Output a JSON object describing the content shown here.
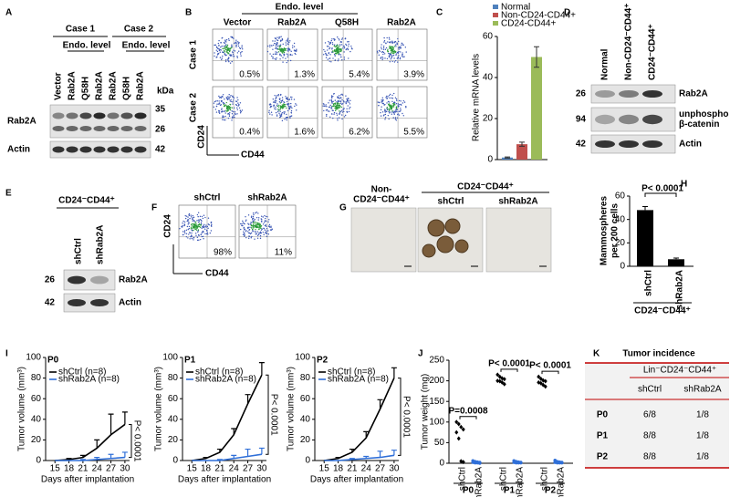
{
  "panel_letters": [
    "A",
    "B",
    "C",
    "D",
    "E",
    "F",
    "G",
    "H",
    "I",
    "J",
    "K"
  ],
  "panel_A": {
    "groups": [
      "Case 1",
      "Case 2"
    ],
    "subheaders": [
      "Endo. level",
      "Endo. level"
    ],
    "lanes": [
      "Vector",
      "Rab2A",
      "Q58H",
      "Rab2A",
      "Rab2A",
      "Q58H",
      "Rab2A"
    ],
    "kda": "kDa",
    "rows": [
      "Rab2A",
      "Actin"
    ],
    "mw": [
      35,
      26,
      42
    ]
  },
  "panel_B": {
    "header": "Endo. level",
    "columns": [
      "Vector",
      "Rab2A",
      "Q58H",
      "Rab2A"
    ],
    "rows": [
      "Case 1",
      "Case 2"
    ],
    "percent": [
      [
        "0.5%",
        "1.3%",
        "5.4%",
        "3.9%"
      ],
      [
        "0.4%",
        "1.6%",
        "6.2%",
        "5.5%"
      ]
    ],
    "y_axis": "CD24",
    "x_axis": "CD44"
  },
  "panel_C": {
    "type": "bar",
    "y_label": "Relative mRNA levels",
    "ylim": [
      0,
      60
    ],
    "yticks": [
      0,
      20,
      40,
      60
    ],
    "series": [
      {
        "name": "Normal",
        "color": "#4f81bd",
        "value": 1,
        "error": 0.3
      },
      {
        "name": "Non-CD24-CD44+",
        "color": "#c0504d",
        "value": 7.5,
        "error": 1
      },
      {
        "name": "CD24-CD44+",
        "color": "#9bbb59",
        "value": 50,
        "error": 5
      }
    ]
  },
  "panel_D": {
    "lanes": [
      "Normal",
      "Non-CD24⁻CD44⁺",
      "CD24⁻CD44⁺"
    ],
    "mw": [
      26,
      94,
      42
    ],
    "rows": [
      [
        "Rab2A"
      ],
      [
        "unphospho",
        "β-catenin"
      ],
      [
        "Actin"
      ]
    ]
  },
  "panel_E": {
    "title": "CD24⁻CD44⁺",
    "lanes": [
      "shCtrl",
      "shRab2A"
    ],
    "mw": [
      26,
      42
    ],
    "rows": [
      "Rab2A",
      "Actin"
    ]
  },
  "panel_F": {
    "columns": [
      "shCtrl",
      "shRab2A"
    ],
    "percent": [
      "98%",
      "11%"
    ],
    "y_axis": "CD24",
    "x_axis": "CD44"
  },
  "panel_G": {
    "first_group": [
      "Non-",
      "CD24⁻CD44⁺"
    ],
    "header": "CD24⁻CD44⁺",
    "columns": [
      "shCtrl",
      "shRab2A"
    ]
  },
  "panel_H": {
    "type": "bar",
    "y_label": [
      "Mammospheres",
      "per 200 cells"
    ],
    "categories": [
      "shCtrl",
      "shRab2A"
    ],
    "values": [
      48,
      6
    ],
    "errors": [
      3,
      1
    ],
    "ylim": [
      0,
      60
    ],
    "yticks": [
      0,
      20,
      40,
      60
    ],
    "p_value": "P< 0.0001",
    "group": "CD24⁻CD44⁺",
    "color": "#000000"
  },
  "panel_I": {
    "type": "line",
    "y_label": "Tumor volume (mm³)",
    "x_label": "Days after implantation",
    "x": [
      15,
      18,
      21,
      24,
      27,
      30
    ],
    "xlim": [
      13,
      31
    ],
    "xticks": [
      15,
      18,
      21,
      24,
      27,
      30
    ],
    "ylim": [
      0,
      100
    ],
    "yticks": [
      0,
      20,
      40,
      60,
      80,
      100
    ],
    "charts": [
      {
        "title": "P0",
        "p_value": "P< 0.0001",
        "series": [
          {
            "name": "shCtrl (n=8)",
            "color": "#000000",
            "values": [
              0,
              1,
              3,
              12,
              25,
              35
            ],
            "errors": [
              0,
              1,
              2,
              8,
              20,
              12
            ]
          },
          {
            "name": "shRab2A (n=8)",
            "color": "#2f6fd8",
            "values": [
              0,
              0,
              0,
              1,
              2,
              3
            ],
            "errors": [
              0,
              0,
              1,
              2,
              4,
              5
            ]
          }
        ]
      },
      {
        "title": "P1",
        "p_value": "P< 0.0001",
        "series": [
          {
            "name": "shCtrl (n=8)",
            "color": "#000000",
            "values": [
              0,
              2,
              8,
              25,
              55,
              83
            ],
            "errors": [
              0,
              1,
              3,
              6,
              9,
              12
            ]
          },
          {
            "name": "shRab2A (n=8)",
            "color": "#2f6fd8",
            "values": [
              0,
              0,
              0,
              2,
              4,
              6
            ],
            "errors": [
              0,
              0,
              1,
              3,
              7,
              6
            ]
          }
        ]
      },
      {
        "title": "P2",
        "p_value": "P< 0.0001",
        "series": [
          {
            "name": "shCtrl (n=8)",
            "color": "#000000",
            "values": [
              0,
              2,
              8,
              22,
              50,
              80
            ],
            "errors": [
              0,
              1,
              3,
              6,
              9,
              10
            ]
          },
          {
            "name": "shRab2A (n=8)",
            "color": "#2f6fd8",
            "values": [
              0,
              0,
              1,
              2,
              3,
              5
            ],
            "errors": [
              0,
              0,
              1,
              2,
              6,
              5
            ]
          }
        ]
      }
    ]
  },
  "panel_J": {
    "type": "scatter",
    "y_label": "Tumor weight (mg)",
    "ylim": [
      0,
      250
    ],
    "yticks": [
      0,
      50,
      100,
      150,
      200,
      250
    ],
    "groups": [
      {
        "name": "P0",
        "p_value": "P=0.0008",
        "series": [
          {
            "name": "shCtrl",
            "color": "#000000",
            "values": [
              100,
              95,
              88,
              82,
              75,
              60,
              5,
              3
            ]
          },
          {
            "name": "shRab2A",
            "color": "#2f6fd8",
            "values": [
              6,
              4,
              3,
              2,
              2,
              1,
              1,
              0
            ]
          }
        ]
      },
      {
        "name": "P1",
        "p_value": "P< 0.0001",
        "series": [
          {
            "name": "shCtrl",
            "color": "#000000",
            "values": [
              215,
              210,
              206,
              204,
              200,
              199,
              196,
              192
            ]
          },
          {
            "name": "shRab2A",
            "color": "#2f6fd8",
            "values": [
              6,
              4,
              3,
              2,
              2,
              1,
              1,
              1
            ]
          }
        ]
      },
      {
        "name": "P2",
        "p_value": "P< 0.0001",
        "series": [
          {
            "name": "shCtrl",
            "color": "#000000",
            "values": [
              210,
              205,
              201,
              199,
              196,
              194,
              190,
              186
            ]
          },
          {
            "name": "shRab2A",
            "color": "#2f6fd8",
            "values": [
              7,
              4,
              3,
              2,
              2,
              1,
              1,
              1
            ]
          }
        ]
      }
    ]
  },
  "panel_K": {
    "title": "Tumor incidence",
    "group_header": "Lin⁻CD24⁻CD44⁺",
    "columns": [
      "shCtrl",
      "shRab2A"
    ],
    "rows": [
      [
        "P0",
        "6/8",
        "1/8"
      ],
      [
        "P1",
        "8/8",
        "1/8"
      ],
      [
        "P2",
        "8/8",
        "1/8"
      ]
    ]
  }
}
